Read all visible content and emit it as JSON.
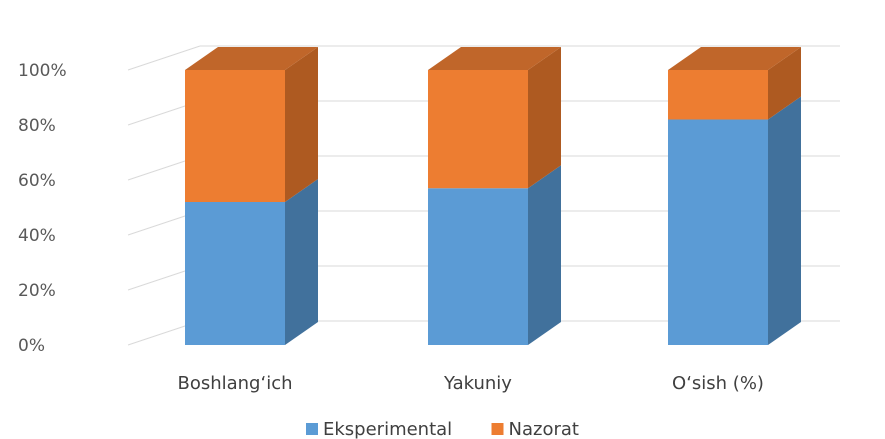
{
  "chart_data": {
    "type": "bar",
    "stacked": "percent",
    "three_d": true,
    "categories": [
      "Boshlang‘ich",
      "Yakuniy",
      "O‘sish (%)"
    ],
    "series": [
      {
        "name": "Eksperimental",
        "values": [
          52,
          57,
          82
        ]
      },
      {
        "name": "Nazorat",
        "values": [
          48,
          43,
          18
        ]
      }
    ],
    "yticks": [
      "0%",
      "20%",
      "40%",
      "60%",
      "80%",
      "100%"
    ],
    "ylim": [
      0,
      100
    ],
    "grid": true,
    "legend_position": "bottom",
    "colors": {
      "Eksperimental": "#5b9bd5",
      "Eksperimental_side": "#41719c",
      "Nazorat": "#ed7d31",
      "Nazorat_side": "#ae5a21",
      "Nazorat_top": "#c0662a",
      "grid": "#d9d9d9"
    }
  }
}
